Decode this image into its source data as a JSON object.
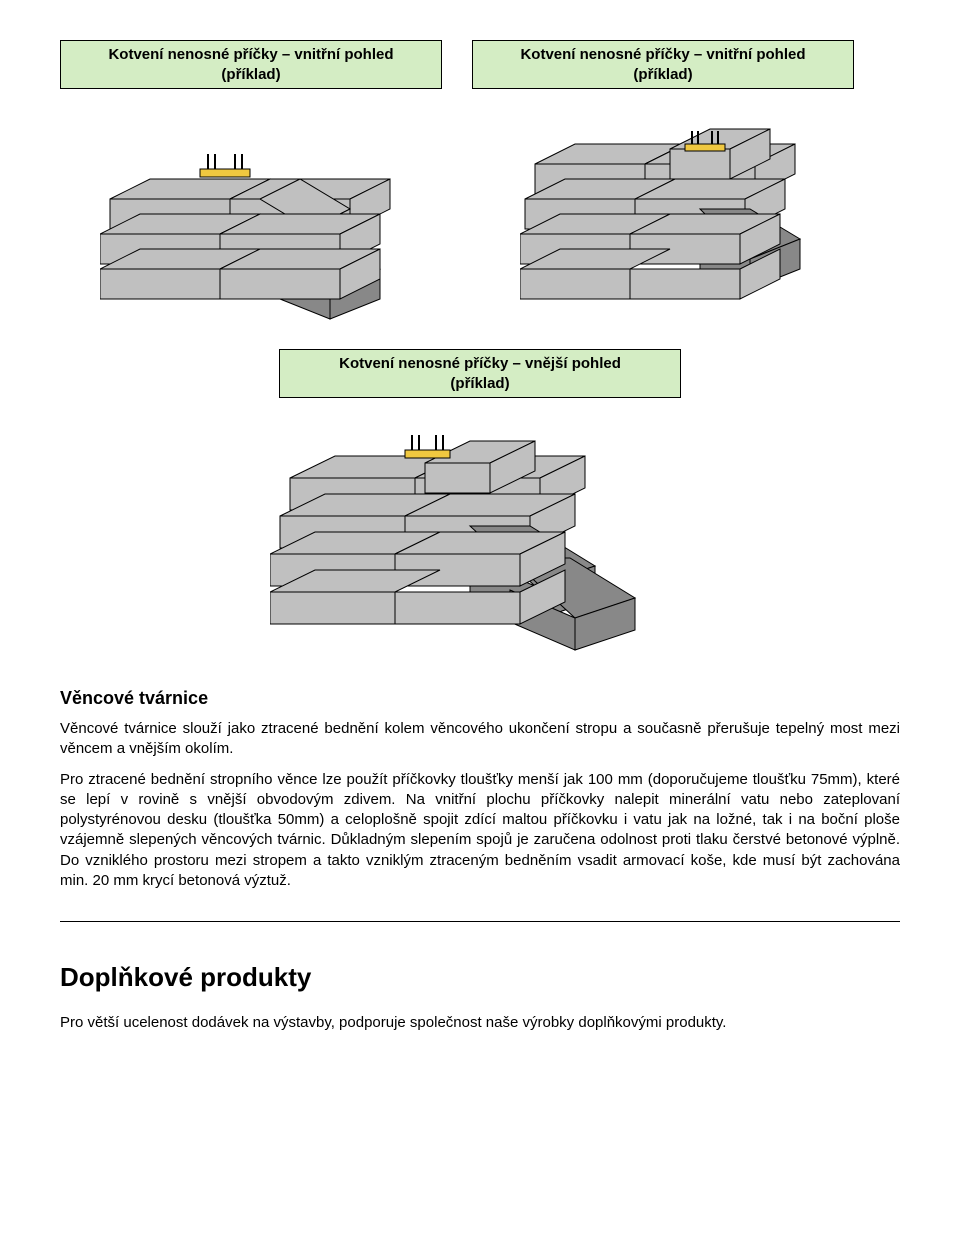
{
  "labels": {
    "top_left": "Kotvení nenosné příčky – vnitřní pohled\n(příklad)",
    "top_right": "Kotvení nenosné příčky – vnitřní pohled\n(příklad)",
    "middle": "Kotvení nenosné příčky – vnější pohled\n(příklad)"
  },
  "heading_1": "Věncové tvárnice",
  "para_1": "Věncové tvárnice slouží jako ztracené bednění kolem věncového ukončení stropu a současně přerušuje tepelný most mezi věncem a vnějším okolím.",
  "para_2": "Pro ztracené bednění stropního věnce lze použít příčkovky tloušťky menší jak 100 mm (doporučujeme tloušťku 75mm), které se lepí v rovině s vnější obvodovým zdivem. Na vnitřní plochu příčkovky nalepit minerální vatu nebo zateplovaní polystyrénovou desku (tloušťka 50mm) a celoplošně spojit zdící maltou příčkovku i vatu jak na ložné, tak i na boční ploše vzájemně slepených věncových tvárnic. Důkladným slepením spojů je zaručena odolnost proti tlaku čerstvé betonové výplně. Do vzniklého prostoru mezi stropem a takto vzniklým ztraceným bedněním vsadit armovací koše, kde musí být zachována min. 20 mm krycí betonová výztuž.",
  "heading_2": "Doplňkové produkty",
  "para_3": "Pro větší ucelenost dodávek na výstavby, podporuje společnost naše výrobky doplňkovými produkty.",
  "diagram": {
    "block_fill": "#c0c0c0",
    "block_stroke": "#000000",
    "bracket_fill": "#f0c840",
    "label_bg": "#d4edc4",
    "label_border": "#000000"
  }
}
